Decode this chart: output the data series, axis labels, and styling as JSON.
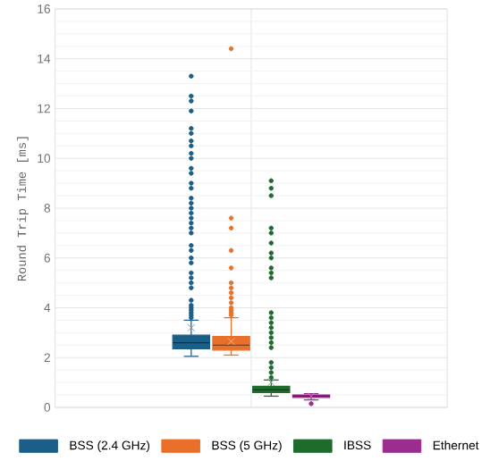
{
  "chart_data": {
    "type": "box",
    "ylabel": "Round Trip Time [ms]",
    "categories": [
      null
    ],
    "series": [
      {
        "name": "BSS (2.4 GHz)",
        "color": "#1b5e87",
        "boxes": [
          {
            "low": 2.05,
            "q1": 2.35,
            "median": 2.6,
            "q3": 2.9,
            "high": 3.5,
            "mean": 3.2,
            "outliers": [
              3.6,
              3.7,
              3.8,
              3.9,
              4.0,
              4.1,
              4.3,
              4.8,
              5.0,
              5.2,
              5.4,
              5.8,
              6.0,
              6.3,
              6.5,
              7.0,
              7.2,
              7.4,
              7.6,
              7.8,
              8.0,
              8.2,
              8.4,
              8.8,
              9.0,
              9.4,
              9.6,
              10.0,
              10.2,
              10.5,
              10.7,
              11.0,
              11.2,
              11.9,
              12.3,
              12.5,
              13.3
            ]
          }
        ]
      },
      {
        "name": "BSS (5 GHz)",
        "color": "#e8702a",
        "boxes": [
          {
            "low": 2.1,
            "q1": 2.3,
            "median": 2.5,
            "q3": 2.85,
            "high": 3.6,
            "mean": 2.65,
            "outliers": [
              3.7,
              3.8,
              3.9,
              4.0,
              4.2,
              4.4,
              4.6,
              4.8,
              5.0,
              5.6,
              6.3,
              7.2,
              7.6,
              14.4
            ]
          }
        ]
      },
      {
        "name": "IBSS",
        "color": "#1e6b2e",
        "boxes": [
          {
            "low": 0.45,
            "q1": 0.6,
            "median": 0.7,
            "q3": 0.85,
            "high": 1.1,
            "mean": 1.0,
            "outliers": [
              1.2,
              1.4,
              1.6,
              1.8,
              2.4,
              2.6,
              2.8,
              3.0,
              3.2,
              3.4,
              3.6,
              3.8,
              5.2,
              5.4,
              5.6,
              6.0,
              6.2,
              6.6,
              7.0,
              7.2,
              8.5,
              8.8,
              9.1
            ]
          }
        ]
      },
      {
        "name": "Ethernet",
        "color": "#9b2d8f",
        "boxes": [
          {
            "low": 0.3,
            "q1": 0.4,
            "median": 0.45,
            "q3": 0.5,
            "high": 0.55,
            "mean": 0.45,
            "outliers": [
              0.15
            ]
          }
        ]
      }
    ],
    "ylim": [
      0,
      16
    ],
    "yticks": [
      0,
      2,
      4,
      6,
      8,
      10,
      12,
      14,
      16
    ],
    "grid": true,
    "legend": "bottom"
  }
}
